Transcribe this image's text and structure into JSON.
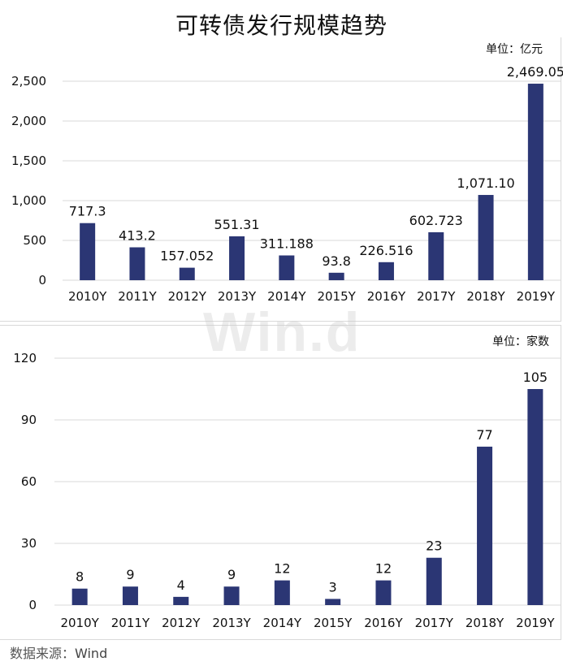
{
  "title": "可转债发行规模趋势",
  "watermark": "Win.d",
  "source": {
    "label": "数据来源：",
    "value": "Wind"
  },
  "chart_data": [
    {
      "type": "bar",
      "unit_label": "单位：亿元",
      "categories": [
        "2010Y",
        "2011Y",
        "2012Y",
        "2013Y",
        "2014Y",
        "2015Y",
        "2016Y",
        "2017Y",
        "2018Y",
        "2019Y"
      ],
      "values": [
        717.3,
        413.2,
        157.052,
        551.31,
        311.188,
        93.8,
        226.516,
        602.723,
        1071.1,
        2469.05
      ],
      "data_labels": [
        "717.3",
        "413.2",
        "157.052",
        "551.31",
        "311.188",
        "93.8",
        "226.516",
        "602.723",
        "1,071.10",
        "2,469.05"
      ],
      "ylim": [
        0,
        2500
      ],
      "yticks": [
        0,
        500,
        1000,
        1500,
        2000,
        2500
      ],
      "ytick_labels": [
        "0",
        "500",
        "1,000",
        "1,500",
        "2,000",
        "2,500"
      ],
      "grid": true,
      "color": "#2b3674"
    },
    {
      "type": "bar",
      "unit_label": "单位：家数",
      "categories": [
        "2010Y",
        "2011Y",
        "2012Y",
        "2013Y",
        "2014Y",
        "2015Y",
        "2016Y",
        "2017Y",
        "2018Y",
        "2019Y"
      ],
      "values": [
        8,
        9,
        4,
        9,
        12,
        3,
        12,
        23,
        77,
        105
      ],
      "data_labels": [
        "8",
        "9",
        "4",
        "9",
        "12",
        "3",
        "12",
        "23",
        "77",
        "105"
      ],
      "ylim": [
        0,
        120
      ],
      "yticks": [
        0,
        30,
        60,
        90,
        120
      ],
      "ytick_labels": [
        "0",
        "30",
        "60",
        "90",
        "120"
      ],
      "grid": true,
      "color": "#2b3674"
    }
  ]
}
